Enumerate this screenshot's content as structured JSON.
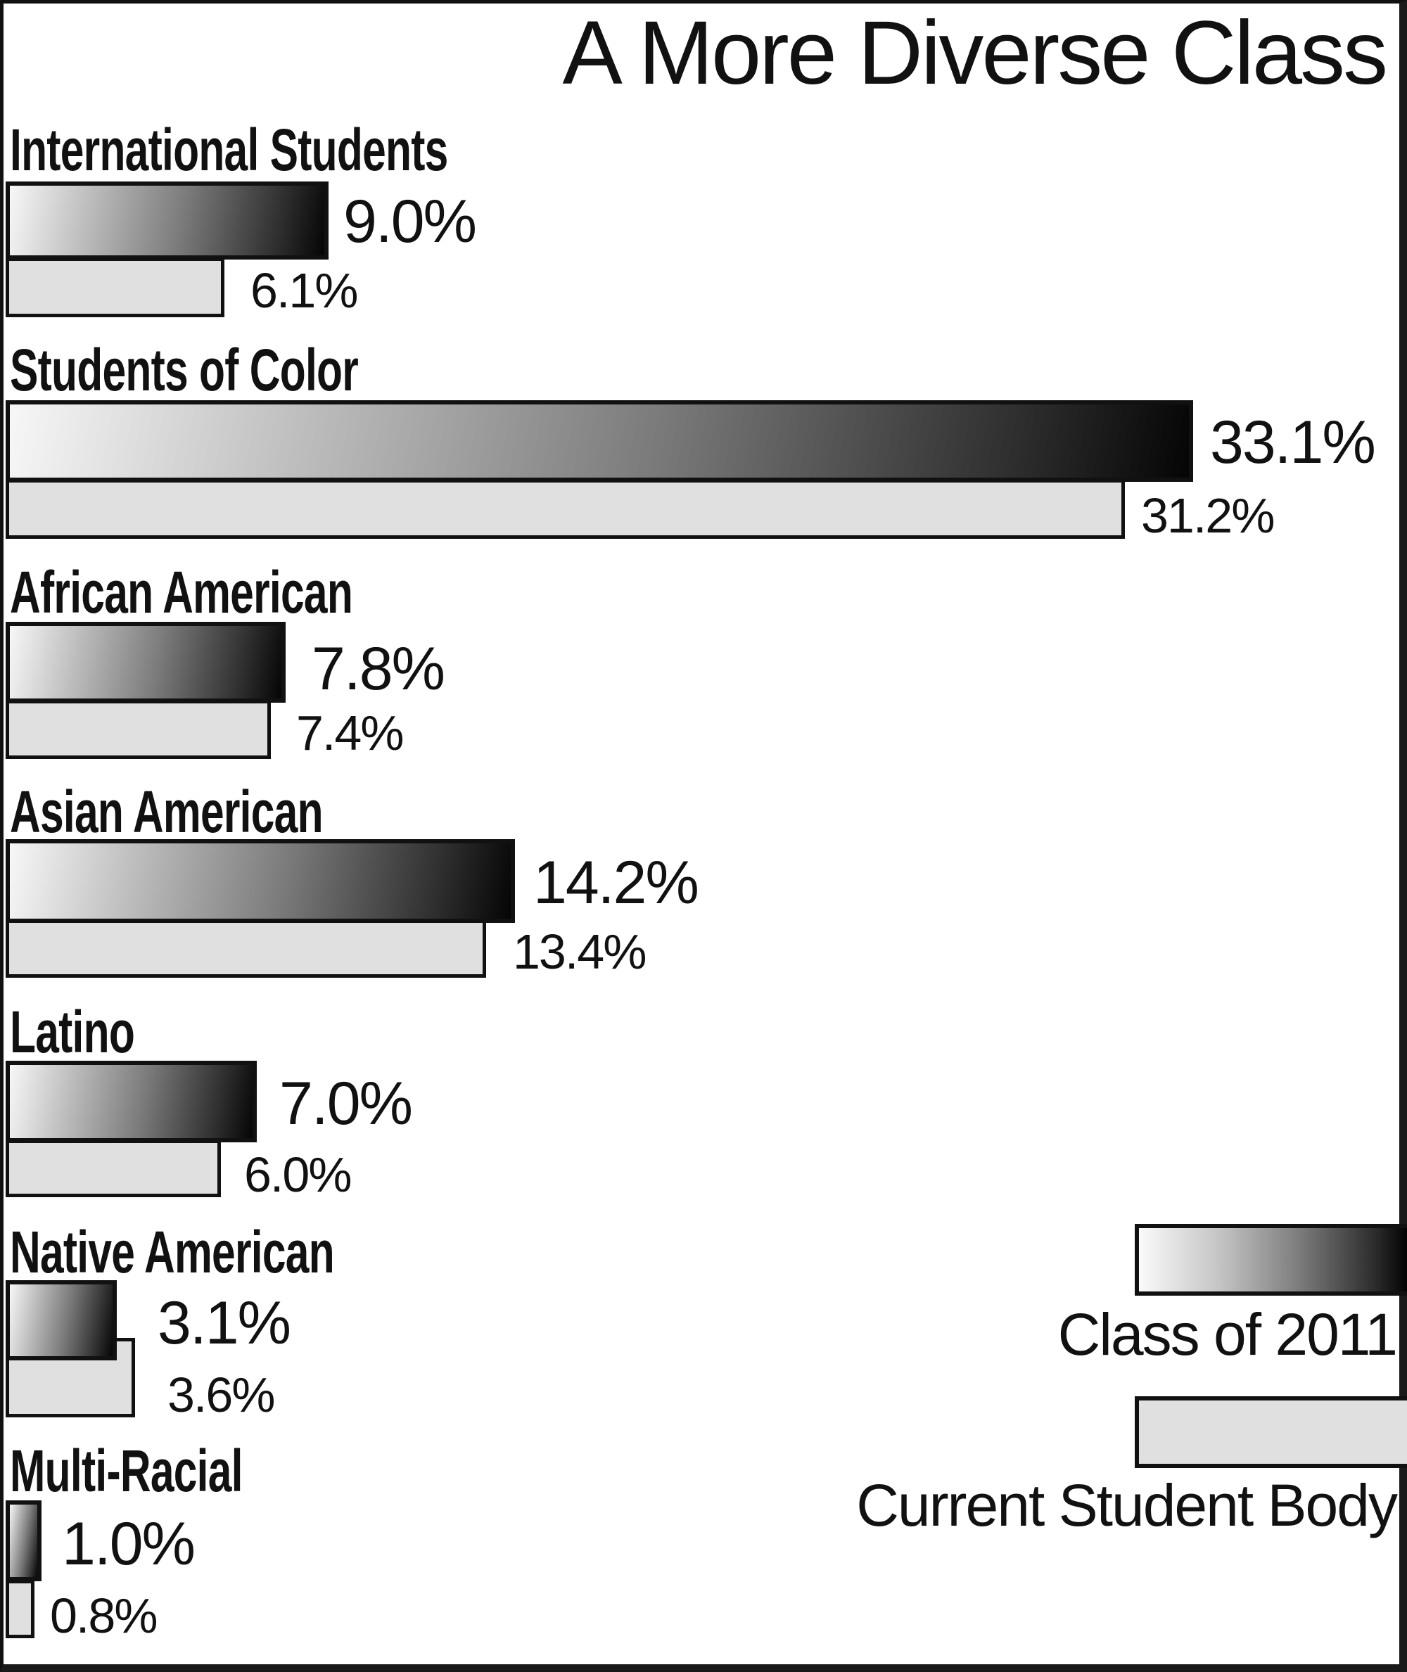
{
  "title": "A More Diverse Class",
  "legend": {
    "class_2011": "Class of 2011",
    "current_body": "Current Student Body"
  },
  "rows": [
    {
      "label": "International Students",
      "class_2011": "9.0%",
      "current": "6.1%"
    },
    {
      "label": "Students of Color",
      "class_2011": "33.1%",
      "current": "31.2%"
    },
    {
      "label": "African American",
      "class_2011": "7.8%",
      "current": "7.4%"
    },
    {
      "label": "Asian American",
      "class_2011": "14.2%",
      "current": "13.4%"
    },
    {
      "label": "Latino",
      "class_2011": "7.0%",
      "current": "6.0%"
    },
    {
      "label": "Native American",
      "class_2011": "3.1%",
      "current": "3.6%"
    },
    {
      "label": "Multi-Racial",
      "class_2011": "1.0%",
      "current": "0.8%"
    }
  ],
  "colors": {
    "current_fill": "#e0e0e0",
    "class_2011_gradient_start": "#f7f7f7",
    "class_2011_gradient_end": "#050505",
    "outline": "#111111"
  },
  "chart_data": {
    "type": "bar",
    "orientation": "horizontal",
    "title": "A More Diverse Class",
    "categories": [
      "International Students",
      "Students of Color",
      "African American",
      "Asian American",
      "Latino",
      "Native American",
      "Multi-Racial"
    ],
    "series": [
      {
        "name": "Class of 2011",
        "values": [
          9.0,
          33.1,
          7.8,
          14.2,
          7.0,
          3.1,
          1.0
        ]
      },
      {
        "name": "Current Student Body",
        "values": [
          6.1,
          31.2,
          7.4,
          13.4,
          6.0,
          3.6,
          0.8
        ]
      }
    ],
    "unit": "%",
    "xlabel": "",
    "ylabel": "",
    "grid": false,
    "legend_position": "bottom-right",
    "data_labels": true
  }
}
